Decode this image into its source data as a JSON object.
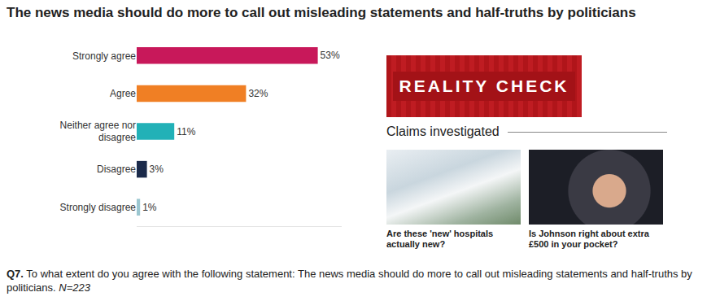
{
  "chart_data": {
    "type": "bar",
    "orientation": "horizontal",
    "title": "The news media should do more to call out misleading statements and half-truths by politicians",
    "categories": [
      "Strongly agree",
      "Agree",
      "Neither agree nor disagree",
      "Disagree",
      "Strongly disagree"
    ],
    "values": [
      53,
      32,
      11,
      3,
      1
    ],
    "value_labels": [
      "53%",
      "32%",
      "11%",
      "3%",
      "1%"
    ],
    "colors": [
      "#c8185a",
      "#f07f24",
      "#22b1b7",
      "#1b2a4a",
      "#9cc7d0"
    ],
    "xlim": [
      0,
      60
    ],
    "xticks": [],
    "grid": false,
    "data_labels": true,
    "tick_labels": "y"
  },
  "panel": {
    "banner": "REALITY CHECK",
    "heading": "Claims investigated",
    "items": [
      {
        "caption": "Are these 'new' hospitals actually new?"
      },
      {
        "caption": "Is Johnson right about extra £500 in your pocket?"
      }
    ]
  },
  "caption": {
    "label": "Q7.",
    "question": "To what extent do you agree with the following statement: The news media should do more to call out misleading statements and half-truths by politicians.",
    "sample": "N=223"
  }
}
